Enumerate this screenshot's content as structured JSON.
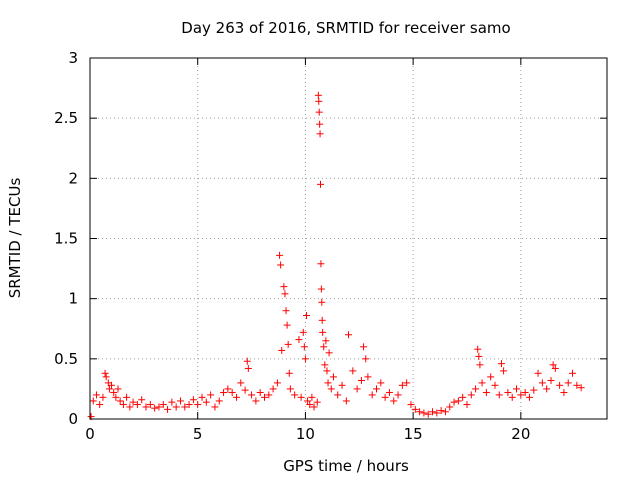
{
  "chart_data": {
    "type": "scatter",
    "title": "Day 263 of 2016, SRMTID for receiver samo",
    "xlabel": "GPS time / hours",
    "ylabel": "SRMTID / TECUs",
    "xlim": [
      0,
      24
    ],
    "ylim": [
      0,
      3
    ],
    "xticks": [
      {
        "value": 0,
        "label": "0"
      },
      {
        "value": 5,
        "label": "5"
      },
      {
        "value": 10,
        "label": "10"
      },
      {
        "value": 15,
        "label": "15"
      },
      {
        "value": 20,
        "label": "20"
      }
    ],
    "yticks": [
      {
        "value": 0,
        "label": "0"
      },
      {
        "value": 0.5,
        "label": "0.5"
      },
      {
        "value": 1,
        "label": "1"
      },
      {
        "value": 1.5,
        "label": "1.5"
      },
      {
        "value": 2,
        "label": "2"
      },
      {
        "value": 2.5,
        "label": "2.5"
      },
      {
        "value": 3,
        "label": "3"
      }
    ],
    "grid": true,
    "marker": "+",
    "series": [
      {
        "name": "SRMTID",
        "color": "#ff0000",
        "points": [
          [
            0.05,
            0.02
          ],
          [
            0.15,
            0.15
          ],
          [
            0.3,
            0.2
          ],
          [
            0.45,
            0.12
          ],
          [
            0.6,
            0.18
          ],
          [
            0.7,
            0.38
          ],
          [
            0.75,
            0.35
          ],
          [
            0.85,
            0.3
          ],
          [
            0.9,
            0.25
          ],
          [
            1.0,
            0.28
          ],
          [
            1.1,
            0.22
          ],
          [
            1.2,
            0.18
          ],
          [
            1.3,
            0.25
          ],
          [
            1.4,
            0.15
          ],
          [
            1.55,
            0.12
          ],
          [
            1.7,
            0.18
          ],
          [
            1.85,
            0.1
          ],
          [
            2.0,
            0.14
          ],
          [
            2.2,
            0.12
          ],
          [
            2.4,
            0.16
          ],
          [
            2.6,
            0.1
          ],
          [
            2.8,
            0.12
          ],
          [
            3.0,
            0.09
          ],
          [
            3.2,
            0.1
          ],
          [
            3.4,
            0.12
          ],
          [
            3.6,
            0.08
          ],
          [
            3.8,
            0.14
          ],
          [
            4.0,
            0.1
          ],
          [
            4.2,
            0.15
          ],
          [
            4.4,
            0.1
          ],
          [
            4.6,
            0.12
          ],
          [
            4.8,
            0.16
          ],
          [
            5.0,
            0.12
          ],
          [
            5.2,
            0.18
          ],
          [
            5.4,
            0.14
          ],
          [
            5.6,
            0.2
          ],
          [
            5.8,
            0.1
          ],
          [
            6.0,
            0.15
          ],
          [
            6.2,
            0.22
          ],
          [
            6.4,
            0.25
          ],
          [
            6.6,
            0.22
          ],
          [
            6.8,
            0.18
          ],
          [
            7.0,
            0.3
          ],
          [
            7.2,
            0.24
          ],
          [
            7.3,
            0.48
          ],
          [
            7.35,
            0.42
          ],
          [
            7.5,
            0.2
          ],
          [
            7.7,
            0.15
          ],
          [
            7.9,
            0.22
          ],
          [
            8.1,
            0.18
          ],
          [
            8.3,
            0.2
          ],
          [
            8.5,
            0.25
          ],
          [
            8.7,
            0.3
          ],
          [
            8.8,
            1.36
          ],
          [
            8.85,
            1.28
          ],
          [
            8.9,
            0.57
          ],
          [
            9.0,
            1.1
          ],
          [
            9.05,
            1.04
          ],
          [
            9.1,
            0.9
          ],
          [
            9.15,
            0.78
          ],
          [
            9.2,
            0.62
          ],
          [
            9.25,
            0.38
          ],
          [
            9.3,
            0.25
          ],
          [
            9.5,
            0.2
          ],
          [
            9.7,
            0.66
          ],
          [
            9.8,
            0.18
          ],
          [
            9.9,
            0.72
          ],
          [
            9.95,
            0.6
          ],
          [
            10.0,
            0.5
          ],
          [
            10.05,
            0.86
          ],
          [
            10.1,
            0.15
          ],
          [
            10.2,
            0.12
          ],
          [
            10.3,
            0.18
          ],
          [
            10.4,
            0.1
          ],
          [
            10.55,
            0.14
          ],
          [
            10.6,
            2.69
          ],
          [
            10.62,
            2.64
          ],
          [
            10.64,
            2.55
          ],
          [
            10.66,
            2.45
          ],
          [
            10.68,
            2.37
          ],
          [
            10.7,
            1.95
          ],
          [
            10.72,
            1.29
          ],
          [
            10.74,
            1.08
          ],
          [
            10.76,
            0.97
          ],
          [
            10.78,
            0.82
          ],
          [
            10.8,
            0.72
          ],
          [
            10.85,
            0.6
          ],
          [
            10.9,
            0.45
          ],
          [
            10.95,
            0.65
          ],
          [
            11.0,
            0.4
          ],
          [
            11.05,
            0.3
          ],
          [
            11.1,
            0.55
          ],
          [
            11.2,
            0.25
          ],
          [
            11.3,
            0.35
          ],
          [
            11.5,
            0.2
          ],
          [
            11.7,
            0.28
          ],
          [
            11.9,
            0.15
          ],
          [
            12.0,
            0.7
          ],
          [
            12.2,
            0.4
          ],
          [
            12.4,
            0.25
          ],
          [
            12.6,
            0.32
          ],
          [
            12.7,
            0.6
          ],
          [
            12.8,
            0.5
          ],
          [
            12.9,
            0.35
          ],
          [
            13.1,
            0.2
          ],
          [
            13.3,
            0.25
          ],
          [
            13.5,
            0.3
          ],
          [
            13.7,
            0.18
          ],
          [
            13.9,
            0.22
          ],
          [
            14.1,
            0.15
          ],
          [
            14.3,
            0.2
          ],
          [
            14.5,
            0.28
          ],
          [
            14.7,
            0.3
          ],
          [
            14.9,
            0.12
          ],
          [
            15.1,
            0.08
          ],
          [
            15.3,
            0.06
          ],
          [
            15.5,
            0.05
          ],
          [
            15.7,
            0.04
          ],
          [
            15.9,
            0.06
          ],
          [
            16.1,
            0.05
          ],
          [
            16.3,
            0.07
          ],
          [
            16.5,
            0.06
          ],
          [
            16.7,
            0.1
          ],
          [
            16.9,
            0.14
          ],
          [
            17.1,
            0.15
          ],
          [
            17.3,
            0.18
          ],
          [
            17.5,
            0.12
          ],
          [
            17.7,
            0.2
          ],
          [
            17.9,
            0.25
          ],
          [
            18.0,
            0.58
          ],
          [
            18.05,
            0.52
          ],
          [
            18.1,
            0.45
          ],
          [
            18.2,
            0.3
          ],
          [
            18.4,
            0.22
          ],
          [
            18.6,
            0.35
          ],
          [
            18.8,
            0.28
          ],
          [
            19.0,
            0.2
          ],
          [
            19.1,
            0.46
          ],
          [
            19.2,
            0.4
          ],
          [
            19.4,
            0.22
          ],
          [
            19.6,
            0.18
          ],
          [
            19.8,
            0.25
          ],
          [
            20.0,
            0.2
          ],
          [
            20.2,
            0.22
          ],
          [
            20.4,
            0.18
          ],
          [
            20.6,
            0.24
          ],
          [
            20.8,
            0.38
          ],
          [
            21.0,
            0.3
          ],
          [
            21.2,
            0.25
          ],
          [
            21.4,
            0.32
          ],
          [
            21.5,
            0.45
          ],
          [
            21.6,
            0.42
          ],
          [
            21.8,
            0.28
          ],
          [
            22.0,
            0.22
          ],
          [
            22.2,
            0.3
          ],
          [
            22.4,
            0.38
          ],
          [
            22.6,
            0.28
          ],
          [
            22.8,
            0.26
          ]
        ]
      }
    ]
  }
}
